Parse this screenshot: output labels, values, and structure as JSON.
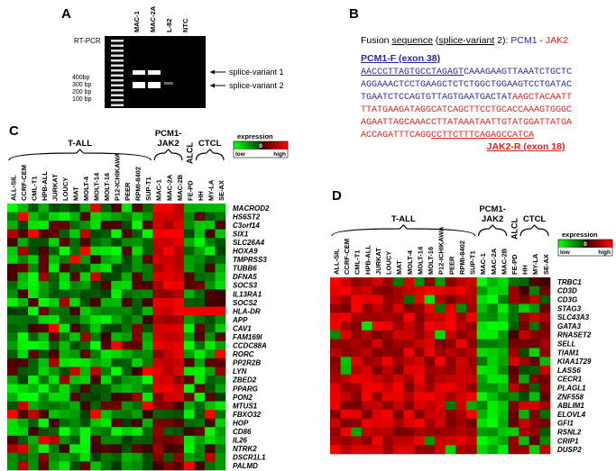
{
  "panels": {
    "A": {
      "label": "A",
      "method": "RT-PCR",
      "lanes": [
        "MAC-1",
        "MAC-2A",
        "L-82",
        "NTC"
      ],
      "markers": [
        "400bp",
        "300 bp",
        "200 bp",
        "100 bp"
      ],
      "bands": [
        "splice-variant 1",
        "splice-variant 2"
      ]
    },
    "B": {
      "label": "B",
      "title": [
        {
          "text": "Fusion "
        },
        {
          "text": "sequence",
          "underline": true
        },
        {
          "text": " ("
        },
        {
          "text": "splice-variant",
          "underline": true
        },
        {
          "text": " 2): "
        },
        {
          "text": "PCM1",
          "color": "#2a2aa0"
        },
        {
          "text": " - "
        },
        {
          "text": "JAK2",
          "color": "#e0201b"
        }
      ],
      "primer_f": "PCM1-F (exon 38)",
      "sequence": [
        [
          {
            "text": "AACCCTTAGTGCCTAGAGT",
            "color": "#2a2aa0",
            "underline": true
          },
          {
            "text": "CAAAGAAGTTAAATCTGCTC",
            "color": "#2a2aa0"
          }
        ],
        [
          {
            "text": "AGGAAACTCCTGAAGCTCTCTGGCTGGAAGTCCTGATAC",
            "color": "#2a2aa0"
          }
        ],
        [
          {
            "text": "TGAATCTCCAGTGTTAGTGAATGACTAT",
            "color": "#2a2aa0"
          },
          {
            "text": "AAGCTACAATT",
            "color": "#e0201b"
          }
        ],
        [
          {
            "text": "TTATGAAGATAGGCATCAGCTTCCTGCACCAAAGTGGGC",
            "color": "#e0201b"
          }
        ],
        [
          {
            "text": "AGAATTAGCAAACCTTATAAATAATTGTATGGATTATGA",
            "color": "#e0201b"
          }
        ],
        [
          {
            "text": "ACCAGATTTCAGG",
            "color": "#e0201b"
          },
          {
            "text": "CCTTCTTTCAGAGCCATCA",
            "color": "#e0201b",
            "underline": true
          }
        ]
      ],
      "primer_r": "JAK2-R (exon 18)"
    },
    "C": {
      "label": "C",
      "groups": [
        {
          "lines": [
            "T-ALL"
          ]
        },
        {
          "lines": [
            "PCM1-",
            "JAK2"
          ]
        },
        {
          "lines": [
            "ALCL"
          ]
        },
        {
          "lines": [
            "CTCL"
          ]
        }
      ],
      "samples": [
        "ALL-SIL",
        "CCRF-CEM",
        "CML-T1",
        "HPB-ALL",
        "JURKAT",
        "LOUCY",
        "MAT",
        "MOLT-4",
        "MOLT-14",
        "MOLT-16",
        "P12-ICHIKAWA",
        "PEER",
        "RPMI-8402",
        "SUP-T1",
        "MAC-1",
        "MAC-2A",
        "MAC-2B",
        "FE-PD",
        "HH",
        "MY-LA",
        "SE-AX"
      ],
      "genes": [
        "MACROD2",
        "HS6ST2",
        "C3orf14",
        "SIX1",
        "SLC26A4",
        "HOXA9",
        "TMPRSS3",
        "TUBB6",
        "DFNA5",
        "SOCS3",
        "IL13RA1",
        "SOCS2",
        "HLA-DR",
        "APP",
        "CAV1",
        "FAM169I",
        "CCDC88A",
        "RORC",
        "PP2R2B",
        "LYN",
        "ZBED2",
        "PPARG",
        "PON2",
        "MTUS1",
        "FBXO32",
        "HOP",
        "CD86",
        "IL26",
        "NTRK2",
        "DSCR1L1",
        "PALMD"
      ],
      "legend": {
        "title": "expression",
        "low": "low",
        "mid": "0",
        "high": "high"
      }
    },
    "D": {
      "label": "D",
      "groups": [
        {
          "lines": [
            "T-ALL"
          ]
        },
        {
          "lines": [
            "PCM1-",
            "JAK2"
          ]
        },
        {
          "lines": [
            "ALCL"
          ]
        },
        {
          "lines": [
            "CTCL"
          ]
        }
      ],
      "samples": [
        "ALL-SIL",
        "CCRF-CEM",
        "CML-T1",
        "HPB-ALL",
        "JURKAT",
        "LOUCY",
        "MAT",
        "MOLT-4",
        "MOLT-14",
        "MOLT-16",
        "P12-ICHIKAWA",
        "PEER",
        "RPMI-8402",
        "SUP-T1",
        "MAC-1",
        "MAC-2A",
        "MAC-2B",
        "FE-PD",
        "HH",
        "MY-LA",
        "SE-AX"
      ],
      "genes": [
        "TRBC1",
        "CD3D",
        "CD3G",
        "STAG3",
        "SLC43A3",
        "GATA3",
        "RNASET2",
        "SELL",
        "TIAM1",
        "KIAA1729",
        "LASS6",
        "CECR1",
        "PLAGL1",
        "ZNF558",
        "ABLIM1",
        "ELOVL4",
        "GFI1",
        "RSNL2",
        "CRIP1",
        "DUSP2"
      ],
      "legend": {
        "title": "expression",
        "low": "low",
        "mid": "0",
        "high": "high"
      }
    }
  }
}
